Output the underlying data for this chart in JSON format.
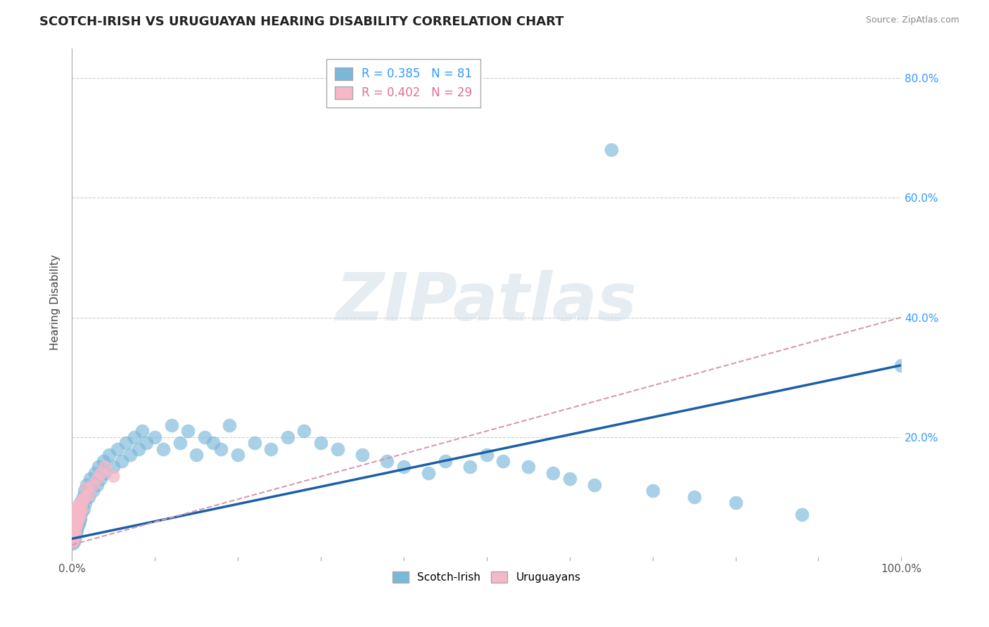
{
  "title": "SCOTCH-IRISH VS URUGUAYAN HEARING DISABILITY CORRELATION CHART",
  "source": "Source: ZipAtlas.com",
  "ylabel": "Hearing Disability",
  "legend_r1": "R = 0.385",
  "legend_n1": "N = 81",
  "legend_r2": "R = 0.402",
  "legend_n2": "N = 29",
  "scotch_irish_color": "#7ab8d9",
  "uruguayan_color": "#f5b8c8",
  "scotch_irish_line_color": "#1a5fa8",
  "uruguayan_line_color": "#d89aaa",
  "background_color": "#ffffff",
  "grid_color": "#cccccc",
  "watermark_text": "ZIPatlas",
  "scotch_irish_x": [
    0.001,
    0.001,
    0.002,
    0.002,
    0.002,
    0.003,
    0.003,
    0.004,
    0.004,
    0.005,
    0.005,
    0.006,
    0.006,
    0.007,
    0.007,
    0.008,
    0.008,
    0.009,
    0.009,
    0.01,
    0.01,
    0.012,
    0.013,
    0.014,
    0.015,
    0.016,
    0.018,
    0.02,
    0.022,
    0.025,
    0.028,
    0.03,
    0.032,
    0.035,
    0.038,
    0.04,
    0.045,
    0.05,
    0.055,
    0.06,
    0.065,
    0.07,
    0.075,
    0.08,
    0.085,
    0.09,
    0.1,
    0.11,
    0.12,
    0.13,
    0.14,
    0.15,
    0.16,
    0.17,
    0.18,
    0.19,
    0.2,
    0.22,
    0.24,
    0.26,
    0.28,
    0.3,
    0.32,
    0.35,
    0.38,
    0.4,
    0.43,
    0.45,
    0.48,
    0.5,
    0.52,
    0.55,
    0.58,
    0.6,
    0.63,
    0.65,
    0.7,
    0.75,
    0.8,
    0.88,
    1.0
  ],
  "scotch_irish_y": [
    0.022,
    0.035,
    0.025,
    0.04,
    0.05,
    0.03,
    0.045,
    0.035,
    0.055,
    0.04,
    0.06,
    0.045,
    0.065,
    0.05,
    0.07,
    0.055,
    0.075,
    0.06,
    0.08,
    0.065,
    0.09,
    0.075,
    0.1,
    0.08,
    0.11,
    0.09,
    0.12,
    0.1,
    0.13,
    0.11,
    0.14,
    0.12,
    0.15,
    0.13,
    0.16,
    0.14,
    0.17,
    0.15,
    0.18,
    0.16,
    0.19,
    0.17,
    0.2,
    0.18,
    0.21,
    0.19,
    0.2,
    0.18,
    0.22,
    0.19,
    0.21,
    0.17,
    0.2,
    0.19,
    0.18,
    0.22,
    0.17,
    0.19,
    0.18,
    0.2,
    0.21,
    0.19,
    0.18,
    0.17,
    0.16,
    0.15,
    0.14,
    0.16,
    0.15,
    0.17,
    0.16,
    0.15,
    0.14,
    0.13,
    0.12,
    0.68,
    0.11,
    0.1,
    0.09,
    0.07,
    0.32
  ],
  "uruguayan_x": [
    0.001,
    0.001,
    0.002,
    0.002,
    0.003,
    0.003,
    0.003,
    0.004,
    0.004,
    0.005,
    0.005,
    0.006,
    0.006,
    0.007,
    0.007,
    0.008,
    0.009,
    0.01,
    0.011,
    0.012,
    0.013,
    0.015,
    0.018,
    0.02,
    0.025,
    0.03,
    0.035,
    0.04,
    0.05
  ],
  "uruguayan_y": [
    0.025,
    0.04,
    0.03,
    0.05,
    0.035,
    0.055,
    0.07,
    0.04,
    0.06,
    0.05,
    0.075,
    0.055,
    0.08,
    0.06,
    0.085,
    0.065,
    0.07,
    0.075,
    0.09,
    0.08,
    0.095,
    0.1,
    0.115,
    0.105,
    0.12,
    0.13,
    0.14,
    0.15,
    0.135
  ],
  "si_line_x0": 0.0,
  "si_line_x1": 1.0,
  "si_line_y0": 0.03,
  "si_line_y1": 0.32,
  "uy_line_x0": 0.0,
  "uy_line_x1": 1.0,
  "uy_line_y0": 0.02,
  "uy_line_y1": 0.4,
  "xlim": [
    0.0,
    1.0
  ],
  "ylim": [
    0.0,
    0.85
  ],
  "figsize": [
    14.06,
    8.92
  ],
  "dpi": 100
}
